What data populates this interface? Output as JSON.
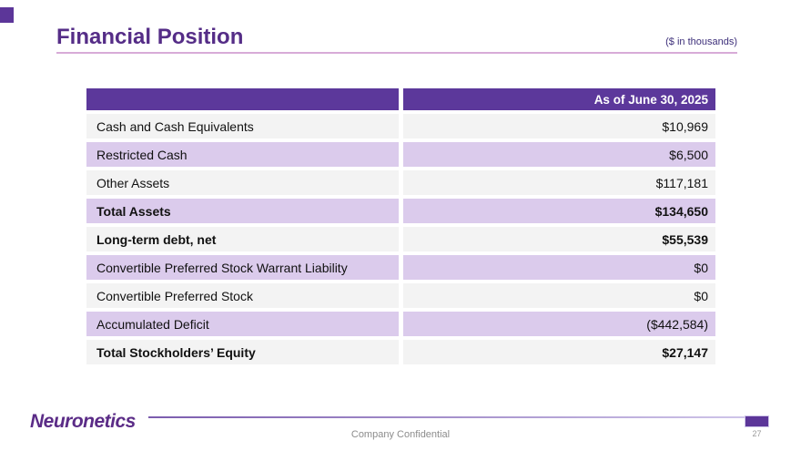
{
  "slide": {
    "title": "Financial Position",
    "units_note": "($ in thousands)"
  },
  "colors": {
    "brand_purple": "#5C389B",
    "title_purple": "#552D87",
    "row_purple": "#DBCBEC",
    "row_gray": "#F3F3F3",
    "underline_pink": "#D8ABD8"
  },
  "table": {
    "column_headers": [
      "",
      "As of June 30, 2025"
    ],
    "rows": [
      {
        "label": "Cash and Cash Equivalents",
        "value": "$10,969",
        "tone": "gray",
        "bold": false
      },
      {
        "label": "Restricted Cash",
        "value": "$6,500",
        "tone": "purple",
        "bold": false
      },
      {
        "label": "Other Assets",
        "value": "$117,181",
        "tone": "gray",
        "bold": false
      },
      {
        "label": "Total Assets",
        "value": "$134,650",
        "tone": "purple",
        "bold": true
      },
      {
        "label": "Long-term debt, net",
        "value": "$55,539",
        "tone": "gray",
        "bold": true
      },
      {
        "label": "Convertible Preferred Stock Warrant Liability",
        "value": "$0",
        "tone": "purple",
        "bold": false
      },
      {
        "label": "Convertible Preferred Stock",
        "value": "$0",
        "tone": "gray",
        "bold": false
      },
      {
        "label": "Accumulated Deficit",
        "value": "($442,584)",
        "tone": "purple",
        "bold": false
      },
      {
        "label": "Total Stockholders’ Equity",
        "value": "$27,147",
        "tone": "gray",
        "bold": true
      }
    ]
  },
  "footer": {
    "logo_text": "Neuronetics",
    "confidential_label": "Company Confidential",
    "page_number": "27"
  }
}
